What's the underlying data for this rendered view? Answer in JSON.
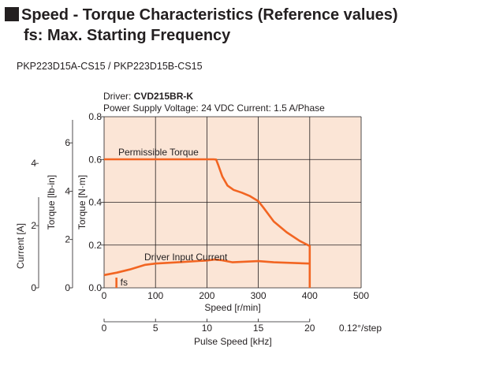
{
  "header": {
    "title_line1": "Speed - Torque Characteristics (Reference values)",
    "title_line2": "fs: Max. Starting Frequency"
  },
  "model_label": "PKP223D15A-CS15 / PKP223D15B-CS15",
  "driver": {
    "prefix": "Driver: ",
    "name": "CVD215BR-K",
    "conditions": "Power Supply Voltage: 24 VDC  Current: 1.5 A/Phase"
  },
  "colors": {
    "plot_background": "#fbe5d6",
    "curve": "#f26522",
    "grid": "#231f20",
    "square_bullet": "#231f20"
  },
  "chart_data": {
    "type": "line",
    "title": "",
    "xlabel": "Speed [r/min]",
    "xlim": [
      0,
      500
    ],
    "x_ticks": [
      0,
      100,
      200,
      300,
      400,
      500
    ],
    "ylabel_torque_nm": "Torque [N·m]",
    "ylim_torque_nm": [
      0,
      0.8
    ],
    "y_ticks_torque_nm": [
      0,
      0.2,
      0.4,
      0.6,
      0.8
    ],
    "ylabel_torque_lbin": "Torque [lb-in]",
    "y_ticks_torque_lbin": [
      0,
      2,
      4,
      6
    ],
    "ylabel_current": "Current [A]",
    "y_ticks_current": [
      0,
      2,
      4
    ],
    "x2label": "Pulse Speed [kHz]",
    "x2_ticks": [
      0,
      5,
      10,
      15,
      20
    ],
    "x2_note": "0.12°/step",
    "grid": true,
    "series": [
      {
        "name": "Permissible Torque",
        "axis": "torque_nm",
        "points": [
          [
            0,
            0.601
          ],
          [
            213,
            0.601
          ],
          [
            218,
            0.6
          ],
          [
            222,
            0.575
          ],
          [
            230,
            0.52
          ],
          [
            240,
            0.478
          ],
          [
            252,
            0.458
          ],
          [
            268,
            0.445
          ],
          [
            283,
            0.43
          ],
          [
            300,
            0.405
          ],
          [
            310,
            0.375
          ],
          [
            330,
            0.31
          ],
          [
            355,
            0.26
          ],
          [
            380,
            0.22
          ],
          [
            398,
            0.198
          ],
          [
            400,
            0.196
          ],
          [
            400,
            0
          ]
        ]
      },
      {
        "name": "Driver Input Current",
        "axis": "current",
        "points": [
          [
            0,
            0.41
          ],
          [
            25,
            0.49
          ],
          [
            50,
            0.59
          ],
          [
            80,
            0.74
          ],
          [
            100,
            0.78
          ],
          [
            150,
            0.83
          ],
          [
            200,
            0.88
          ],
          [
            215,
            0.91
          ],
          [
            228,
            0.89
          ],
          [
            250,
            0.82
          ],
          [
            300,
            0.86
          ],
          [
            330,
            0.82
          ],
          [
            400,
            0.78
          ]
        ]
      }
    ],
    "annotations": [
      {
        "text": "fs",
        "x": 24,
        "note": "Max. Starting Frequency marker"
      }
    ]
  }
}
